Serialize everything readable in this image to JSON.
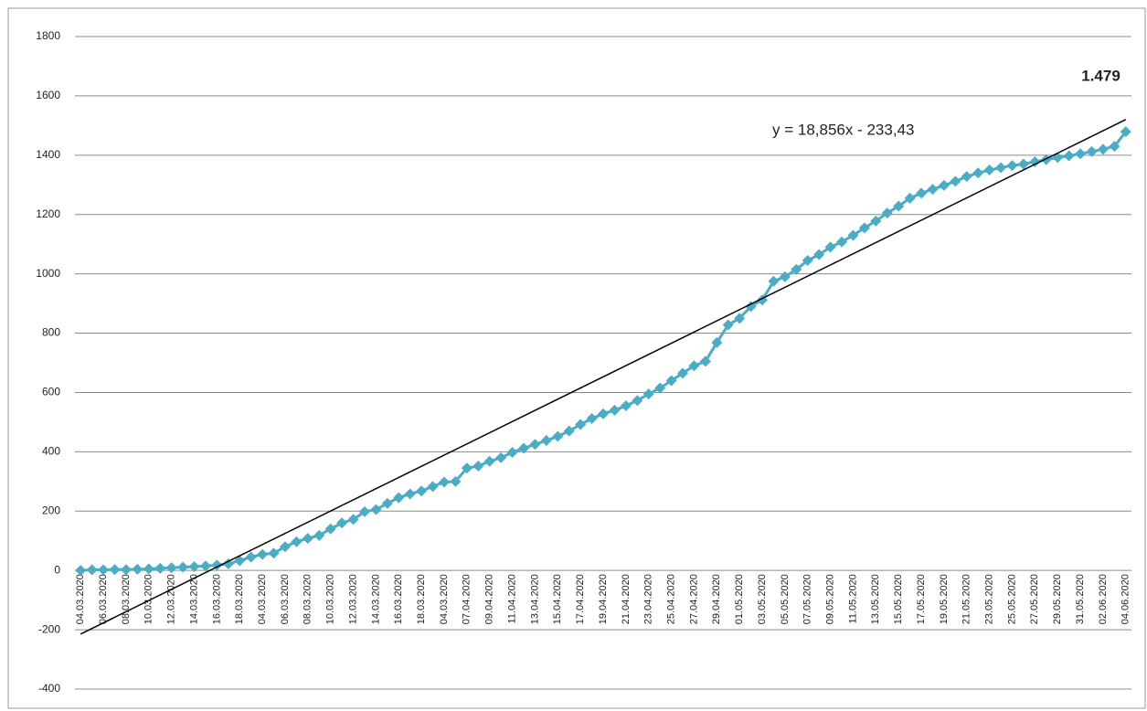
{
  "chart_data": {
    "type": "line",
    "categories": [
      "04.03.2020",
      null,
      "06.03.2020",
      null,
      "08.03.2020",
      null,
      "10.03.2020",
      null,
      "12.03.2020",
      null,
      "14.03.2020",
      null,
      "16.03.2020",
      null,
      "18.03.2020",
      null,
      "04.03.2020",
      null,
      "06.03.2020",
      null,
      "08.03.2020",
      null,
      "10.03.2020",
      null,
      "12.03.2020",
      null,
      "14.03.2020",
      null,
      "16.03.2020",
      null,
      "18.03.2020",
      null,
      "04.03.2020",
      null,
      "07.04.2020",
      null,
      "09.04.2020",
      null,
      "11.04.2020",
      null,
      "13.04.2020",
      null,
      "15.04.2020",
      null,
      "17.04.2020",
      null,
      "19.04.2020",
      null,
      "21.04.2020",
      null,
      "23.04.2020",
      null,
      "25.04.2020",
      null,
      "27.04.2020",
      null,
      "29.04.2020",
      null,
      "01.05.2020",
      null,
      "03.05.2020",
      null,
      "05.05.2020",
      null,
      "07.05.2020",
      null,
      "09.05.2020",
      null,
      "11.05.2020",
      null,
      "13.05.2020",
      null,
      "15.05.2020",
      null,
      "17.05.2020",
      null,
      "19.05.2020",
      null,
      "21.05.2020",
      null,
      "23.05.2020",
      null,
      "25.05.2020",
      null,
      "27.05.2020",
      null,
      "29.05.2020",
      null,
      "31.05.2020",
      null,
      "02.06.2020",
      null,
      "04.06.2020"
    ],
    "series": [
      {
        "color": "#4bacc6",
        "values": [
          0,
          2,
          2,
          3,
          3,
          4,
          5,
          7,
          9,
          11,
          13,
          15,
          18,
          22,
          33,
          45,
          54,
          58,
          80,
          97,
          108,
          118,
          140,
          160,
          172,
          198,
          205,
          226,
          245,
          258,
          268,
          283,
          298,
          300,
          345,
          352,
          368,
          380,
          398,
          412,
          425,
          438,
          452,
          470,
          492,
          512,
          528,
          540,
          555,
          573,
          595,
          615,
          640,
          665,
          690,
          705,
          768,
          828,
          850,
          890,
          912,
          975,
          990,
          1015,
          1045,
          1065,
          1090,
          1108,
          1130,
          1155,
          1178,
          1205,
          1228,
          1255,
          1272,
          1285,
          1298,
          1312,
          1328,
          1340,
          1350,
          1358,
          1365,
          1370,
          1378,
          1385,
          1392,
          1398,
          1405,
          1412,
          1420,
          1430,
          1479
        ],
        "value_labels": [
          null,
          null,
          null,
          null,
          null,
          null,
          null,
          null,
          null,
          null,
          null,
          null,
          null,
          null,
          null,
          null,
          null,
          null,
          null,
          null,
          null,
          null,
          null,
          null,
          null,
          null,
          null,
          null,
          null,
          null,
          null,
          null,
          null,
          null,
          null,
          null,
          null,
          null,
          null,
          null,
          null,
          null,
          null,
          null,
          null,
          null,
          null,
          null,
          null,
          null,
          null,
          null,
          null,
          null,
          null,
          null,
          null,
          null,
          null,
          null,
          null,
          null,
          null,
          null,
          null,
          null,
          null,
          null,
          null,
          null,
          null,
          null,
          null,
          null,
          null,
          null,
          null,
          null,
          null,
          null,
          null,
          null,
          null,
          null,
          null,
          null,
          null,
          null,
          null,
          null,
          null,
          null,
          "1.479"
        ]
      }
    ],
    "trendline": {
      "slope": 18.856,
      "intercept": -233.43,
      "label": "y = 18,856x - 233,43",
      "color": "#000000"
    },
    "ylim": [
      -400,
      1800
    ],
    "yticks": [
      -400,
      -200,
      0,
      200,
      400,
      600,
      800,
      1000,
      1200,
      1400,
      1600,
      1800
    ],
    "grid": true
  }
}
